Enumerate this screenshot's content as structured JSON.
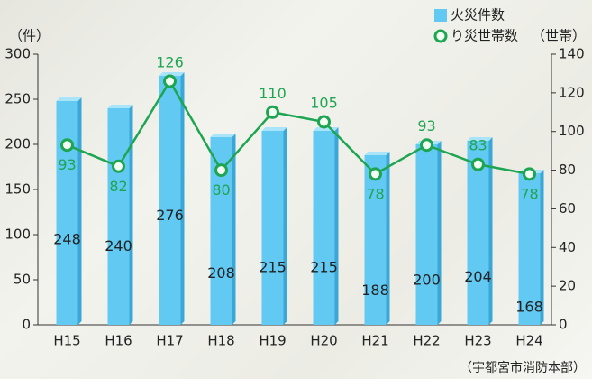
{
  "chart_data": {
    "type": "bar_line",
    "y_label": "（件）",
    "y2_label": "（世帯）",
    "source": "（宇都宮市消防本部）",
    "categories": [
      "H15",
      "H16",
      "H17",
      "H18",
      "H19",
      "H20",
      "H21",
      "H22",
      "H23",
      "H24"
    ],
    "series": [
      {
        "name": "火災件数",
        "type": "bar",
        "color": "#62c9f2",
        "values": [
          248,
          240,
          276,
          208,
          215,
          215,
          188,
          200,
          204,
          168
        ]
      },
      {
        "name": "り災世帯数",
        "type": "line",
        "axis": "y2",
        "color": "#1ea552",
        "values": [
          93,
          82,
          126,
          80,
          110,
          105,
          78,
          93,
          83,
          78
        ]
      }
    ],
    "ylim": [
      0,
      300
    ],
    "yticks": [
      0,
      50,
      100,
      150,
      200,
      250,
      300
    ],
    "y2lim": [
      0,
      140
    ],
    "y2ticks": [
      0,
      20,
      40,
      60,
      80,
      100,
      120,
      140
    ]
  }
}
